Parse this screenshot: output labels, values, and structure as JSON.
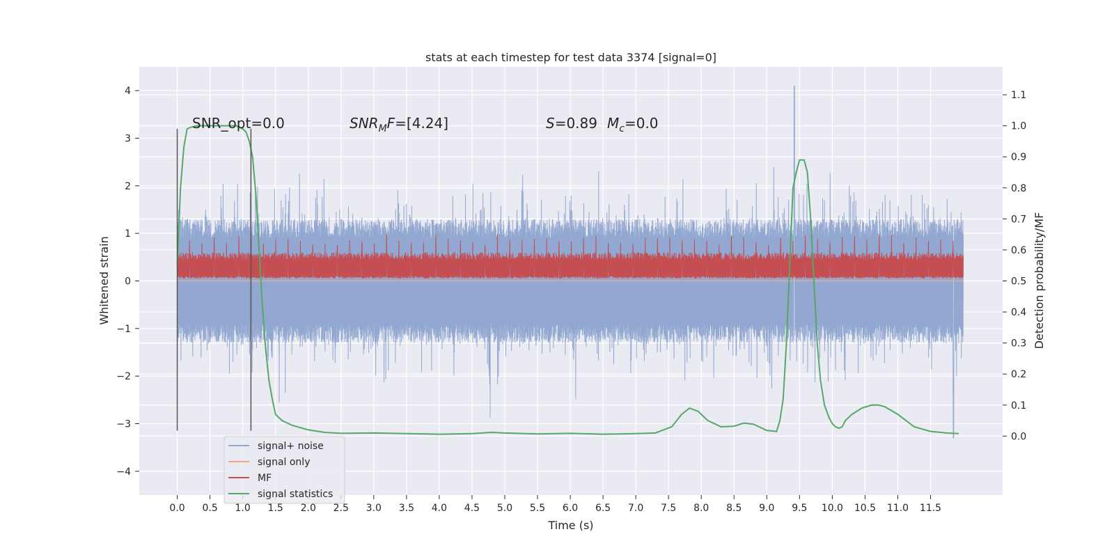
{
  "chart_data": {
    "type": "line",
    "title": "stats at each timestep for test data 3374 [signal=0]",
    "xlabel": "Time (s)",
    "ylabel": "Whitened strain",
    "y2label": "Detection probability/MF",
    "xlim": [
      -0.58,
      12.6
    ],
    "ylim": [
      -4.5,
      4.5
    ],
    "y2lim": [
      -0.19,
      1.19
    ],
    "x_ticks": [
      0.0,
      0.5,
      1.0,
      1.5,
      2.0,
      2.5,
      3.0,
      3.5,
      4.0,
      4.5,
      5.0,
      5.5,
      6.0,
      6.5,
      7.0,
      7.5,
      8.0,
      8.5,
      9.0,
      9.5,
      10.0,
      10.5,
      11.0,
      11.5
    ],
    "x_tick_labels": [
      "0.0",
      "0.5",
      "1.0",
      "1.5",
      "2.0",
      "2.5",
      "3.0",
      "3.5",
      "4.0",
      "4.5",
      "5.0",
      "5.5",
      "6.0",
      "6.5",
      "7.0",
      "7.5",
      "8.0",
      "8.5",
      "9.0",
      "9.5",
      "10.0",
      "10.5",
      "11.0",
      "11.5"
    ],
    "y_ticks": [
      -4,
      -3,
      -2,
      -1,
      0,
      1,
      2,
      3,
      4
    ],
    "y_tick_labels": [
      "−4",
      "−3",
      "−2",
      "−1",
      "0",
      "1",
      "2",
      "3",
      "4"
    ],
    "y2_ticks": [
      0.0,
      0.1,
      0.2,
      0.3,
      0.4,
      0.5,
      0.6,
      0.7,
      0.8,
      0.9,
      1.0,
      1.1
    ],
    "y2_tick_labels": [
      "0.0",
      "0.1",
      "0.2",
      "0.3",
      "0.4",
      "0.5",
      "0.6",
      "0.7",
      "0.8",
      "0.9",
      "1.0",
      "1.1"
    ],
    "grid": true,
    "legend_position": "lower-left",
    "annotations": {
      "snr_opt": "SNR_opt=0.0",
      "snr_mf": "=[4.24]",
      "s_mc_1": "=0.89",
      "s_mc_2": "=0.0"
    },
    "vlines": [
      0.0,
      1.125
    ],
    "vline_range": [
      -3.15,
      3.2
    ],
    "series": [
      {
        "name": "signal+ noise",
        "color": "#92a8d1",
        "axis": "left",
        "kind": "noise",
        "x_range": [
          0.0,
          12.0
        ],
        "envelope_upper": 1.3,
        "envelope_lower": -1.3,
        "max_value": 4.1,
        "max_at": 9.42,
        "min_value": -3.35,
        "min_at": 11.85
      },
      {
        "name": "signal only",
        "color": "#e8a88a",
        "axis": "left",
        "x": [
          0.0,
          12.0
        ],
        "values": [
          0.0,
          0.0
        ]
      },
      {
        "name": "MF",
        "color": "#c44e52",
        "axis": "left",
        "kind": "noise",
        "x_range": [
          0.0,
          12.0
        ],
        "envelope_upper": 0.6,
        "envelope_lower": 0.05,
        "max_value": 1.0
      },
      {
        "name": "signal statistics",
        "color": "#55a868",
        "axis": "right",
        "x": [
          0.0,
          0.05,
          0.1,
          0.15,
          0.2,
          0.3,
          0.5,
          0.7,
          0.9,
          1.0,
          1.05,
          1.1,
          1.15,
          1.2,
          1.25,
          1.3,
          1.35,
          1.4,
          1.45,
          1.5,
          1.6,
          1.75,
          2.0,
          2.25,
          2.5,
          3.0,
          3.5,
          4.0,
          4.5,
          4.8,
          5.0,
          5.5,
          6.0,
          6.5,
          7.0,
          7.3,
          7.55,
          7.7,
          7.82,
          7.95,
          8.1,
          8.3,
          8.5,
          8.65,
          8.8,
          9.0,
          9.15,
          9.2,
          9.25,
          9.3,
          9.35,
          9.4,
          9.45,
          9.5,
          9.57,
          9.62,
          9.67,
          9.72,
          9.77,
          9.82,
          9.88,
          9.95,
          10.0,
          10.05,
          10.1,
          10.15,
          10.2,
          10.3,
          10.45,
          10.6,
          10.7,
          10.8,
          11.0,
          11.25,
          11.5,
          11.75,
          11.93
        ],
        "values": [
          0.55,
          0.8,
          0.93,
          0.99,
          0.995,
          1.0,
          1.0,
          1.0,
          1.0,
          0.99,
          0.98,
          0.95,
          0.9,
          0.78,
          0.6,
          0.42,
          0.28,
          0.18,
          0.12,
          0.07,
          0.05,
          0.035,
          0.02,
          0.012,
          0.009,
          0.01,
          0.008,
          0.006,
          0.008,
          0.012,
          0.01,
          0.007,
          0.009,
          0.006,
          0.008,
          0.01,
          0.03,
          0.07,
          0.09,
          0.08,
          0.05,
          0.03,
          0.032,
          0.042,
          0.038,
          0.018,
          0.015,
          0.05,
          0.12,
          0.3,
          0.55,
          0.8,
          0.85,
          0.89,
          0.89,
          0.85,
          0.7,
          0.5,
          0.3,
          0.18,
          0.1,
          0.06,
          0.04,
          0.03,
          0.025,
          0.03,
          0.05,
          0.07,
          0.09,
          0.1,
          0.1,
          0.095,
          0.07,
          0.03,
          0.015,
          0.01,
          0.008
        ]
      }
    ]
  }
}
